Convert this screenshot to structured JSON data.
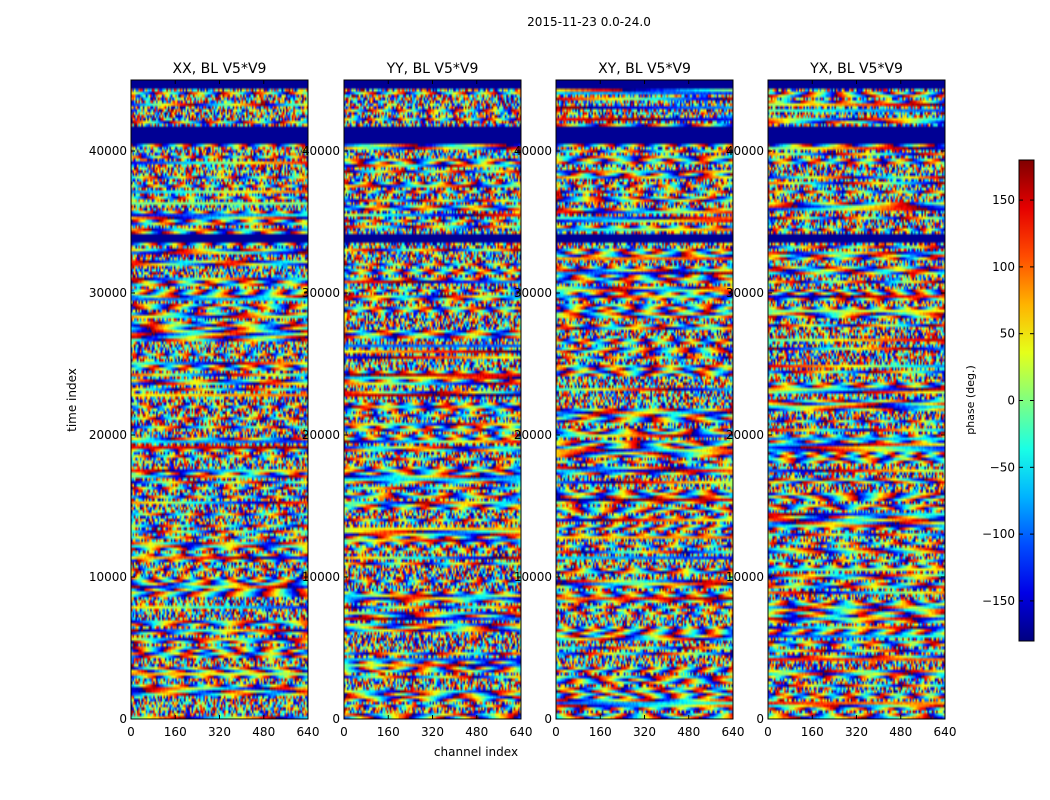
{
  "chart_data": {
    "type": "heatmap",
    "suptitle": "2015-11-23 0.0-24.0",
    "xlabel": "channel index",
    "ylabel": "time index",
    "xlim": [
      0,
      640
    ],
    "ylim": [
      0,
      45000
    ],
    "xticks": [
      0,
      160,
      320,
      480,
      640
    ],
    "yticks": [
      0,
      10000,
      20000,
      30000,
      40000
    ],
    "colormap": "jet",
    "colorbar": {
      "label": "phase (deg.)",
      "range": [
        -180,
        180
      ],
      "ticks": [
        -150,
        -100,
        -50,
        0,
        50,
        100,
        150
      ]
    },
    "panels": [
      {
        "title": "XX, BL V5*V9",
        "polarization": "XX",
        "baseline": "V5*V9"
      },
      {
        "title": "YY, BL V5*V9",
        "polarization": "YY",
        "baseline": "V5*V9"
      },
      {
        "title": "XY, BL V5*V9",
        "polarization": "XY",
        "baseline": "V5*V9"
      },
      {
        "title": "YX, BL V5*V9",
        "polarization": "YX",
        "baseline": "V5*V9"
      }
    ],
    "flagged_time_ranges": [
      [
        33600,
        34200
      ],
      [
        40600,
        41800
      ],
      [
        44300,
        45000
      ]
    ]
  }
}
